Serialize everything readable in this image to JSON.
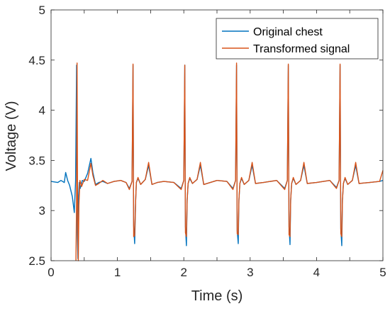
{
  "chart_data": {
    "type": "line",
    "title": "",
    "xlabel": "Time (s)",
    "ylabel": "Voltage (V)",
    "xlim": [
      0,
      5
    ],
    "ylim": [
      2.5,
      5
    ],
    "x_ticks": [
      "0",
      "0.5",
      "1",
      "1.5",
      "2",
      "2.5",
      "3",
      "3.5",
      "4",
      "4.5",
      "5"
    ],
    "y_ticks": [
      "2.5",
      "3",
      "3.5",
      "4",
      "4.5",
      "5"
    ],
    "grid": false,
    "legend_position": "top-right",
    "series": [
      {
        "name": "Original chest",
        "color": "#0072BD",
        "x": [
          0,
          0.1,
          0.15,
          0.2,
          0.22,
          0.25,
          0.28,
          0.32,
          0.35,
          0.37,
          0.385,
          0.395,
          0.405,
          0.415,
          0.425,
          0.44,
          0.47,
          0.5,
          0.55,
          0.6,
          0.63,
          0.67,
          0.72,
          0.78,
          0.85,
          0.95,
          1.05,
          1.13,
          1.18,
          1.22,
          1.235,
          1.245,
          1.26,
          1.275,
          1.285,
          1.31,
          1.35,
          1.42,
          1.47,
          1.52,
          1.6,
          1.7,
          1.85,
          1.96,
          2.0,
          2.015,
          2.025,
          2.04,
          2.05,
          2.065,
          2.09,
          2.13,
          2.2,
          2.25,
          2.3,
          2.4,
          2.5,
          2.65,
          2.74,
          2.78,
          2.795,
          2.805,
          2.82,
          2.83,
          2.845,
          2.87,
          2.91,
          2.98,
          3.03,
          3.08,
          3.2,
          3.4,
          3.52,
          3.56,
          3.575,
          3.585,
          3.6,
          3.61,
          3.625,
          3.65,
          3.69,
          3.76,
          3.81,
          3.86,
          4.0,
          4.2,
          4.3,
          4.34,
          4.355,
          4.365,
          4.38,
          4.39,
          4.405,
          4.43,
          4.47,
          4.54,
          4.59,
          4.64,
          4.8,
          4.95,
          5.0
        ],
        "y": [
          3.29,
          3.28,
          3.3,
          3.28,
          3.38,
          3.3,
          3.25,
          3.14,
          2.98,
          3.3,
          4.45,
          2.78,
          2.52,
          3.15,
          3.28,
          3.22,
          3.3,
          3.29,
          3.37,
          3.52,
          3.38,
          3.26,
          3.28,
          3.29,
          3.27,
          3.29,
          3.3,
          3.28,
          3.22,
          3.29,
          4.45,
          2.85,
          2.67,
          3.1,
          3.28,
          3.32,
          3.26,
          3.31,
          3.45,
          3.26,
          3.28,
          3.29,
          3.28,
          3.22,
          3.3,
          4.45,
          2.84,
          2.65,
          3.1,
          3.27,
          3.32,
          3.27,
          3.31,
          3.45,
          3.26,
          3.28,
          3.3,
          3.29,
          3.22,
          3.3,
          4.45,
          2.8,
          2.67,
          3.1,
          3.27,
          3.32,
          3.26,
          3.3,
          3.45,
          3.27,
          3.28,
          3.3,
          3.22,
          3.3,
          4.45,
          2.84,
          2.66,
          3.1,
          3.27,
          3.32,
          3.26,
          3.3,
          3.45,
          3.27,
          3.28,
          3.3,
          3.23,
          3.3,
          4.45,
          2.82,
          2.65,
          3.1,
          3.27,
          3.32,
          3.26,
          3.3,
          3.45,
          3.27,
          3.28,
          3.29,
          3.3
        ]
      },
      {
        "name": "Transformed signal",
        "color": "#D95319",
        "x": [
          0.375,
          0.385,
          0.392,
          0.4,
          0.41,
          0.42,
          0.435,
          0.46,
          0.5,
          0.55,
          0.6,
          0.63,
          0.67,
          0.72,
          0.78,
          0.85,
          0.95,
          1.05,
          1.13,
          1.18,
          1.22,
          1.235,
          1.245,
          1.26,
          1.275,
          1.285,
          1.31,
          1.35,
          1.42,
          1.47,
          1.52,
          1.6,
          1.7,
          1.85,
          1.96,
          2.0,
          2.015,
          2.025,
          2.04,
          2.05,
          2.065,
          2.09,
          2.13,
          2.2,
          2.25,
          2.3,
          2.4,
          2.5,
          2.65,
          2.74,
          2.78,
          2.795,
          2.805,
          2.82,
          2.83,
          2.845,
          2.87,
          2.91,
          2.98,
          3.03,
          3.08,
          3.2,
          3.4,
          3.52,
          3.56,
          3.575,
          3.585,
          3.6,
          3.61,
          3.625,
          3.65,
          3.69,
          3.76,
          3.81,
          3.86,
          4.0,
          4.2,
          4.3,
          4.34,
          4.355,
          4.365,
          4.38,
          4.39,
          4.405,
          4.43,
          4.47,
          4.54,
          4.59,
          4.64,
          4.8,
          4.95,
          5.0
        ],
        "y": [
          2.5,
          3.1,
          4.47,
          3.0,
          2.5,
          3.05,
          3.3,
          3.24,
          3.31,
          3.3,
          3.47,
          3.35,
          3.25,
          3.27,
          3.3,
          3.27,
          3.29,
          3.3,
          3.28,
          3.21,
          3.29,
          4.46,
          2.74,
          2.75,
          3.1,
          3.28,
          3.33,
          3.26,
          3.31,
          3.48,
          3.26,
          3.28,
          3.29,
          3.28,
          3.21,
          3.3,
          4.45,
          2.78,
          2.74,
          3.1,
          3.27,
          3.33,
          3.27,
          3.31,
          3.48,
          3.26,
          3.28,
          3.3,
          3.29,
          3.21,
          3.3,
          4.47,
          2.77,
          2.76,
          3.1,
          3.27,
          3.33,
          3.26,
          3.3,
          3.48,
          3.27,
          3.28,
          3.3,
          3.21,
          3.3,
          4.46,
          2.76,
          2.74,
          3.1,
          3.27,
          3.33,
          3.26,
          3.3,
          3.48,
          3.27,
          3.28,
          3.3,
          3.22,
          3.3,
          4.46,
          2.77,
          2.74,
          3.1,
          3.27,
          3.33,
          3.26,
          3.3,
          3.48,
          3.27,
          3.28,
          3.29,
          3.4
        ]
      }
    ]
  }
}
